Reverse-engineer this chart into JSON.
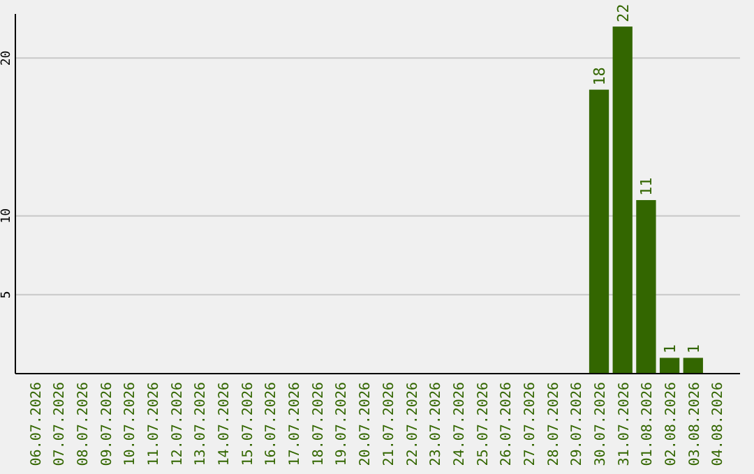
{
  "chart_data": {
    "type": "bar",
    "categories": [
      "06.07.2026",
      "07.07.2026",
      "08.07.2026",
      "09.07.2026",
      "10.07.2026",
      "11.07.2026",
      "12.07.2026",
      "13.07.2026",
      "14.07.2026",
      "15.07.2026",
      "16.07.2026",
      "17.07.2026",
      "18.07.2026",
      "19.07.2026",
      "20.07.2026",
      "21.07.2026",
      "22.07.2026",
      "23.07.2026",
      "24.07.2026",
      "25.07.2026",
      "26.07.2026",
      "27.07.2026",
      "28.07.2026",
      "29.07.2026",
      "30.07.2026",
      "31.07.2026",
      "01.08.2026",
      "02.08.2026",
      "03.08.2026",
      "04.08.2026"
    ],
    "values": [
      0,
      0,
      0,
      0,
      0,
      0,
      0,
      0,
      0,
      0,
      0,
      0,
      0,
      0,
      0,
      0,
      0,
      0,
      0,
      0,
      0,
      0,
      0,
      0,
      18,
      22,
      11,
      1,
      1,
      0
    ],
    "value_labels": [
      null,
      null,
      null,
      null,
      null,
      null,
      null,
      null,
      null,
      null,
      null,
      null,
      null,
      null,
      null,
      null,
      null,
      null,
      null,
      null,
      null,
      null,
      null,
      null,
      "18",
      "22",
      "11",
      "1",
      "1",
      null
    ],
    "color": "#336600",
    "ylim": [
      0,
      22.8
    ],
    "yticks": [
      5,
      10,
      20
    ],
    "grid": "y"
  }
}
